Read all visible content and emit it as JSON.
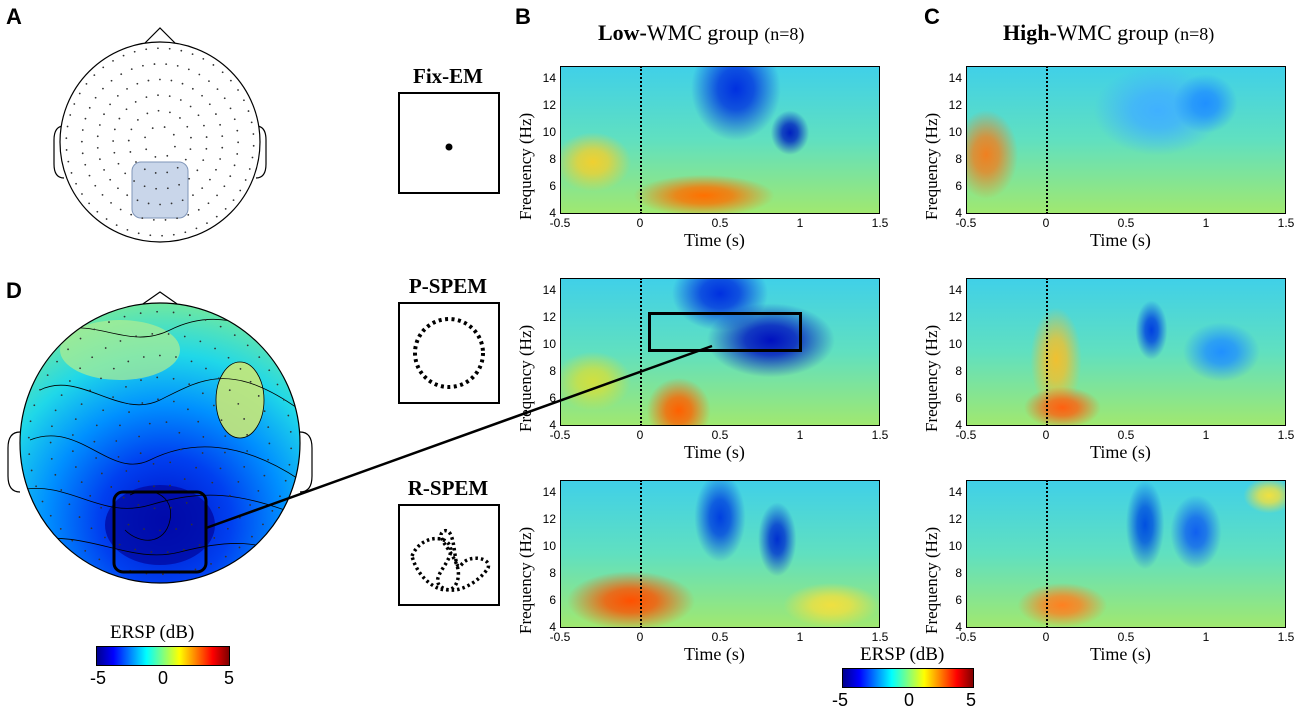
{
  "panels": {
    "a": "A",
    "b": "B",
    "c": "C",
    "d": "D"
  },
  "groups": {
    "low": {
      "bold": "Low-",
      "rest": "WMC group",
      "n": "(n=8)"
    },
    "high": {
      "bold": "High-",
      "rest": "WMC group",
      "n": "(n=8)"
    }
  },
  "conditions": [
    {
      "id": "fix",
      "label": "Fix-EM"
    },
    {
      "id": "pspem",
      "label": "P-SPEM"
    },
    {
      "id": "rspem",
      "label": "R-SPEM"
    }
  ],
  "axes": {
    "ylabel": "Frequency (Hz)",
    "xlabel": "Time (s)",
    "y_ticks": [
      "4",
      "6",
      "8",
      "10",
      "12",
      "14"
    ],
    "x_ticks": [
      "-0.5",
      "0",
      "0.5",
      "1",
      "1.5"
    ]
  },
  "colorbar_left": {
    "title": "ERSP (dB)",
    "min": "-5",
    "mid": "0",
    "max": "5"
  },
  "colorbar_bottom": {
    "title": "ERSP (dB)",
    "min": "-5",
    "mid": "0",
    "max": "5"
  },
  "chart_data": [
    {
      "type": "heatmap",
      "title": "Low-WMC group (n=8) — Fix-EM",
      "xlabel": "Time (s)",
      "ylabel": "Frequency (Hz)",
      "xlim": [
        -0.5,
        1.5
      ],
      "ylim": [
        4,
        15
      ],
      "clim": [
        -5,
        5
      ]
    },
    {
      "type": "heatmap",
      "title": "High-WMC group (n=8) — Fix-EM",
      "xlabel": "Time (s)",
      "ylabel": "Frequency (Hz)",
      "xlim": [
        -0.5,
        1.5
      ],
      "ylim": [
        4,
        15
      ],
      "clim": [
        -5,
        5
      ]
    },
    {
      "type": "heatmap",
      "title": "Low-WMC group (n=8) — P-SPEM",
      "xlabel": "Time (s)",
      "ylabel": "Frequency (Hz)",
      "xlim": [
        -0.5,
        1.5
      ],
      "ylim": [
        4,
        15
      ],
      "clim": [
        -5,
        5
      ],
      "highlight": {
        "time": [
          0.0,
          1.0
        ],
        "freq": [
          9.5,
          12.5
        ]
      }
    },
    {
      "type": "heatmap",
      "title": "High-WMC group (n=8) — P-SPEM",
      "xlabel": "Time (s)",
      "ylabel": "Frequency (Hz)",
      "xlim": [
        -0.5,
        1.5
      ],
      "ylim": [
        4,
        15
      ],
      "clim": [
        -5,
        5
      ]
    },
    {
      "type": "heatmap",
      "title": "Low-WMC group (n=8) — R-SPEM",
      "xlabel": "Time (s)",
      "ylabel": "Frequency (Hz)",
      "xlim": [
        -0.5,
        1.5
      ],
      "ylim": [
        4,
        15
      ],
      "clim": [
        -5,
        5
      ]
    },
    {
      "type": "heatmap",
      "title": "High-WMC group (n=8) — R-SPEM",
      "xlabel": "Time (s)",
      "ylabel": "Frequency (Hz)",
      "xlim": [
        -0.5,
        1.5
      ],
      "ylim": [
        4,
        15
      ],
      "clim": [
        -5,
        5
      ]
    }
  ]
}
